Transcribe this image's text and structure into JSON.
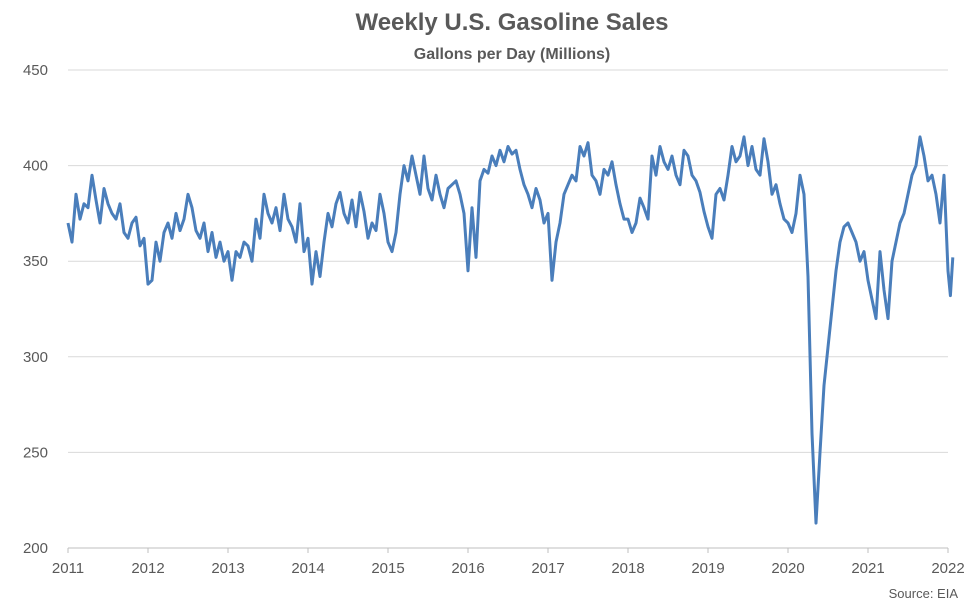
{
  "chart_data": {
    "type": "line",
    "title": "Weekly U.S. Gasoline Sales",
    "subtitle": "Gallons per Day (Millions)",
    "source": "Source: EIA",
    "xlim": [
      2011,
      2022
    ],
    "ylim": [
      200,
      450
    ],
    "yticks": [
      200,
      250,
      300,
      350,
      400,
      450
    ],
    "xticks": [
      "2011",
      "2012",
      "2013",
      "2014",
      "2015",
      "2016",
      "2017",
      "2018",
      "2019",
      "2020",
      "2021",
      "2022"
    ],
    "grid": true,
    "line_color": "#4a7ebb",
    "series": [
      {
        "x": [
          2011.0,
          2011.05,
          2011.1,
          2011.15,
          2011.2,
          2011.25,
          2011.3,
          2011.35,
          2011.4,
          2011.45,
          2011.5,
          2011.55,
          2011.6,
          2011.65,
          2011.7,
          2011.75,
          2011.8,
          2011.85,
          2011.9,
          2011.95,
          2012.0,
          2012.05,
          2012.1,
          2012.15,
          2012.2,
          2012.25,
          2012.3,
          2012.35,
          2012.4,
          2012.45,
          2012.5,
          2012.55,
          2012.6,
          2012.65,
          2012.7,
          2012.75,
          2012.8,
          2012.85,
          2012.9,
          2012.95,
          2013.0,
          2013.05,
          2013.1,
          2013.15,
          2013.2,
          2013.25,
          2013.3,
          2013.35,
          2013.4,
          2013.45,
          2013.5,
          2013.55,
          2013.6,
          2013.65,
          2013.7,
          2013.75,
          2013.8,
          2013.85,
          2013.9,
          2013.95,
          2014.0,
          2014.05,
          2014.1,
          2014.15,
          2014.2,
          2014.25,
          2014.3,
          2014.35,
          2014.4,
          2014.45,
          2014.5,
          2014.55,
          2014.6,
          2014.65,
          2014.7,
          2014.75,
          2014.8,
          2014.85,
          2014.9,
          2014.95,
          2015.0,
          2015.05,
          2015.1,
          2015.15,
          2015.2,
          2015.25,
          2015.3,
          2015.35,
          2015.4,
          2015.45,
          2015.5,
          2015.55,
          2015.6,
          2015.65,
          2015.7,
          2015.75,
          2015.8,
          2015.85,
          2015.9,
          2015.95,
          2016.0,
          2016.05,
          2016.1,
          2016.15,
          2016.2,
          2016.25,
          2016.3,
          2016.35,
          2016.4,
          2016.45,
          2016.5,
          2016.55,
          2016.6,
          2016.65,
          2016.7,
          2016.75,
          2016.8,
          2016.85,
          2016.9,
          2016.95,
          2017.0,
          2017.05,
          2017.1,
          2017.15,
          2017.2,
          2017.25,
          2017.3,
          2017.35,
          2017.4,
          2017.45,
          2017.5,
          2017.55,
          2017.6,
          2017.65,
          2017.7,
          2017.75,
          2017.8,
          2017.85,
          2017.9,
          2017.95,
          2018.0,
          2018.05,
          2018.1,
          2018.15,
          2018.2,
          2018.25,
          2018.3,
          2018.35,
          2018.4,
          2018.45,
          2018.5,
          2018.55,
          2018.6,
          2018.65,
          2018.7,
          2018.75,
          2018.8,
          2018.85,
          2018.9,
          2018.95,
          2019.0,
          2019.05,
          2019.1,
          2019.15,
          2019.2,
          2019.25,
          2019.3,
          2019.35,
          2019.4,
          2019.45,
          2019.5,
          2019.55,
          2019.6,
          2019.65,
          2019.7,
          2019.75,
          2019.8,
          2019.85,
          2019.9,
          2019.95,
          2020.0,
          2020.05,
          2020.1,
          2020.15,
          2020.2,
          2020.25,
          2020.3,
          2020.35,
          2020.4,
          2020.45,
          2020.5,
          2020.55,
          2020.6,
          2020.65,
          2020.7,
          2020.75,
          2020.8,
          2020.85,
          2020.9,
          2020.95,
          2021.0,
          2021.05,
          2021.1,
          2021.15,
          2021.2,
          2021.25,
          2021.3,
          2021.35,
          2021.4,
          2021.45,
          2021.5,
          2021.55,
          2021.6,
          2021.65,
          2021.7,
          2021.75,
          2021.8,
          2021.85,
          2021.9,
          2021.95,
          2022.0,
          2022.03,
          2022.06
        ],
        "values": [
          370,
          360,
          385,
          372,
          380,
          378,
          395,
          382,
          370,
          388,
          380,
          375,
          372,
          380,
          365,
          362,
          370,
          373,
          358,
          362,
          338,
          340,
          360,
          350,
          365,
          370,
          362,
          375,
          366,
          372,
          385,
          378,
          366,
          362,
          370,
          355,
          365,
          352,
          360,
          350,
          355,
          340,
          355,
          352,
          360,
          358,
          350,
          372,
          362,
          385,
          375,
          370,
          378,
          366,
          385,
          372,
          368,
          360,
          380,
          355,
          362,
          338,
          355,
          342,
          360,
          375,
          368,
          380,
          386,
          375,
          370,
          382,
          368,
          386,
          376,
          362,
          370,
          366,
          385,
          375,
          360,
          355,
          365,
          385,
          400,
          392,
          405,
          395,
          385,
          405,
          388,
          382,
          395,
          385,
          378,
          388,
          390,
          392,
          385,
          375,
          345,
          378,
          352,
          392,
          398,
          396,
          405,
          400,
          408,
          402,
          410,
          406,
          408,
          398,
          390,
          385,
          378,
          388,
          382,
          370,
          375,
          340,
          360,
          370,
          385,
          390,
          395,
          392,
          410,
          405,
          412,
          395,
          392,
          385,
          398,
          395,
          402,
          390,
          380,
          372,
          372,
          365,
          370,
          383,
          378,
          372,
          405,
          395,
          410,
          402,
          398,
          405,
          395,
          390,
          408,
          405,
          395,
          392,
          386,
          376,
          368,
          362,
          385,
          388,
          382,
          395,
          410,
          402,
          405,
          415,
          400,
          410,
          398,
          395,
          414,
          402,
          385,
          390,
          380,
          372,
          370,
          365,
          375,
          395,
          385,
          342,
          260,
          213,
          250,
          285,
          305,
          325,
          345,
          360,
          368,
          370,
          365,
          360,
          350,
          355,
          340,
          330,
          320,
          355,
          335,
          320,
          350,
          360,
          370,
          375,
          385,
          395,
          400,
          415,
          405,
          392,
          395,
          385,
          370,
          395,
          345,
          332,
          352
        ]
      }
    ]
  }
}
